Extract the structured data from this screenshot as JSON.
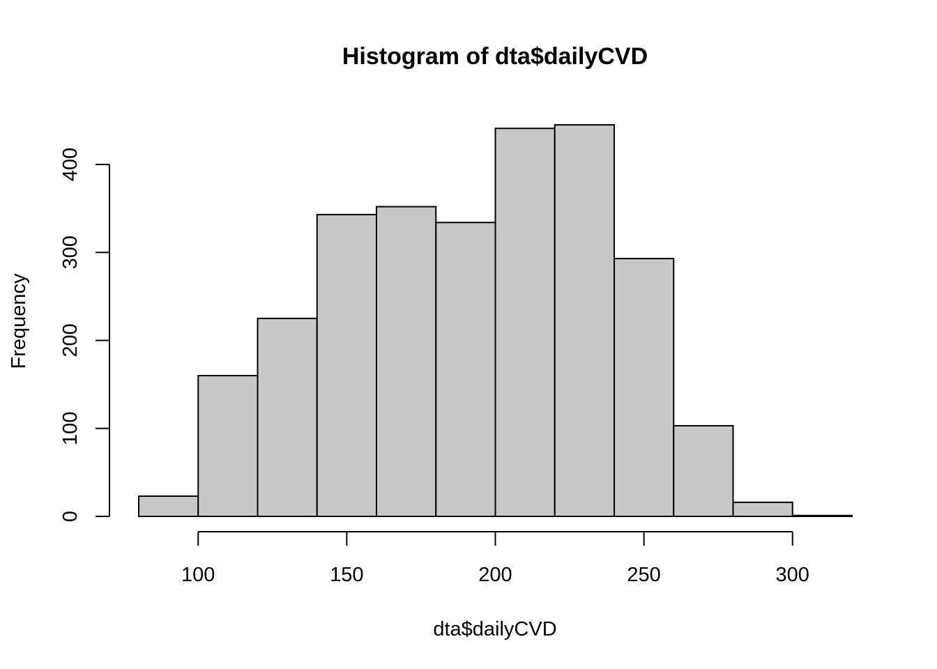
{
  "chart_data": {
    "type": "bar",
    "title": "Histogram of dta$dailyCVD",
    "xlabel": "dta$dailyCVD",
    "ylabel": "Frequency",
    "bins": [
      {
        "start": 80,
        "end": 100,
        "count": 23
      },
      {
        "start": 100,
        "end": 120,
        "count": 160
      },
      {
        "start": 120,
        "end": 140,
        "count": 225
      },
      {
        "start": 140,
        "end": 160,
        "count": 343
      },
      {
        "start": 160,
        "end": 180,
        "count": 352
      },
      {
        "start": 180,
        "end": 200,
        "count": 334
      },
      {
        "start": 200,
        "end": 220,
        "count": 441
      },
      {
        "start": 220,
        "end": 240,
        "count": 445
      },
      {
        "start": 240,
        "end": 260,
        "count": 293
      },
      {
        "start": 260,
        "end": 280,
        "count": 103
      },
      {
        "start": 280,
        "end": 300,
        "count": 16
      },
      {
        "start": 300,
        "end": 320,
        "count": 1
      }
    ],
    "xlim": [
      80,
      320
    ],
    "ylim": [
      0,
      445
    ],
    "x_ticks": [
      100,
      150,
      200,
      250,
      300
    ],
    "y_ticks": [
      0,
      100,
      200,
      300,
      400
    ],
    "bar_color": "#c8c8c8",
    "grid": false
  }
}
